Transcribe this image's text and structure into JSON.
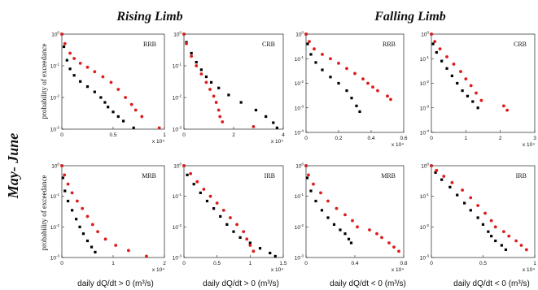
{
  "headers": {
    "rising": "Rising Limb",
    "falling": "Falling Limb"
  },
  "side_label": "May- June",
  "ylabel": "probability of exceedance",
  "xlabels": {
    "pos": "daily dQ/dt > 0 (m³/s)",
    "neg": "daily dQ/dt < 0 (m³/s)"
  },
  "colors": {
    "series_a": "#dd1c1c",
    "series_b": "#000000"
  },
  "chart_data": [
    {
      "type": "scatter",
      "id": "rising-rrb",
      "label": "RRB",
      "multiplier": "x 10⁴",
      "xlim": [
        0,
        1
      ],
      "xticks": [
        0,
        0.5,
        1
      ],
      "xtick_labels": [
        "0",
        "0.5",
        "1"
      ],
      "yscale": "log",
      "ylim": [
        0.001,
        1
      ],
      "series": [
        {
          "color": "red",
          "points": [
            [
              0,
              1
            ],
            [
              0.03,
              0.5
            ],
            [
              0.08,
              0.25
            ],
            [
              0.12,
              0.17
            ],
            [
              0.18,
              0.12
            ],
            [
              0.25,
              0.09
            ],
            [
              0.32,
              0.065
            ],
            [
              0.4,
              0.045
            ],
            [
              0.48,
              0.03
            ],
            [
              0.55,
              0.018
            ],
            [
              0.62,
              0.01
            ],
            [
              0.68,
              0.006
            ],
            [
              0.72,
              0.004
            ],
            [
              0.78,
              0.0025
            ],
            [
              0.95,
              0.0011
            ]
          ]
        },
        {
          "color": "black",
          "points": [
            [
              0,
              1
            ],
            [
              0.02,
              0.4
            ],
            [
              0.05,
              0.15
            ],
            [
              0.08,
              0.08
            ],
            [
              0.12,
              0.05
            ],
            [
              0.18,
              0.032
            ],
            [
              0.25,
              0.022
            ],
            [
              0.32,
              0.015
            ],
            [
              0.38,
              0.01
            ],
            [
              0.42,
              0.007
            ],
            [
              0.45,
              0.005
            ],
            [
              0.5,
              0.0035
            ],
            [
              0.55,
              0.0025
            ],
            [
              0.6,
              0.0018
            ],
            [
              0.7,
              0.0011
            ]
          ]
        }
      ]
    },
    {
      "type": "scatter",
      "id": "rising-crb",
      "label": "CRB",
      "multiplier": "x 10⁴",
      "xlim": [
        0,
        4
      ],
      "xticks": [
        0,
        2,
        4
      ],
      "xtick_labels": [
        "0",
        "2",
        "4"
      ],
      "yscale": "log",
      "ylim": [
        0.001,
        1
      ],
      "series": [
        {
          "color": "red",
          "points": [
            [
              0,
              1
            ],
            [
              0.1,
              0.5
            ],
            [
              0.3,
              0.2
            ],
            [
              0.5,
              0.1
            ],
            [
              0.7,
              0.055
            ],
            [
              0.9,
              0.03
            ],
            [
              1.05,
              0.018
            ],
            [
              1.2,
              0.011
            ],
            [
              1.3,
              0.007
            ],
            [
              1.4,
              0.004
            ],
            [
              1.45,
              0.0025
            ],
            [
              1.55,
              0.0017
            ],
            [
              2.8,
              0.0012
            ]
          ]
        },
        {
          "color": "black",
          "points": [
            [
              0,
              1
            ],
            [
              0.1,
              0.55
            ],
            [
              0.3,
              0.25
            ],
            [
              0.5,
              0.13
            ],
            [
              0.7,
              0.075
            ],
            [
              0.9,
              0.045
            ],
            [
              1.1,
              0.03
            ],
            [
              1.4,
              0.02
            ],
            [
              1.8,
              0.012
            ],
            [
              2.3,
              0.007
            ],
            [
              2.9,
              0.004
            ],
            [
              3.3,
              0.0025
            ],
            [
              3.6,
              0.0016
            ],
            [
              3.75,
              0.0011
            ]
          ]
        }
      ]
    },
    {
      "type": "scatter",
      "id": "falling-rrb",
      "label": "RRB",
      "multiplier": "x 10⁴",
      "xlim": [
        0,
        0.6
      ],
      "xticks": [
        0,
        0.2,
        0.4,
        0.6
      ],
      "xtick_labels": [
        "0",
        "0.2",
        "0.4",
        "0.6"
      ],
      "yscale": "log",
      "ylim": [
        0.0001,
        1
      ],
      "series": [
        {
          "color": "red",
          "points": [
            [
              0,
              1
            ],
            [
              0.02,
              0.5
            ],
            [
              0.05,
              0.25
            ],
            [
              0.1,
              0.15
            ],
            [
              0.15,
              0.1
            ],
            [
              0.2,
              0.065
            ],
            [
              0.25,
              0.04
            ],
            [
              0.3,
              0.025
            ],
            [
              0.35,
              0.015
            ],
            [
              0.38,
              0.01
            ],
            [
              0.41,
              0.007
            ],
            [
              0.44,
              0.005
            ],
            [
              0.5,
              0.003
            ],
            [
              0.52,
              0.0022
            ]
          ]
        },
        {
          "color": "black",
          "points": [
            [
              0,
              1
            ],
            [
              0.01,
              0.4
            ],
            [
              0.03,
              0.15
            ],
            [
              0.06,
              0.07
            ],
            [
              0.1,
              0.035
            ],
            [
              0.15,
              0.018
            ],
            [
              0.2,
              0.01
            ],
            [
              0.25,
              0.005
            ],
            [
              0.28,
              0.0025
            ],
            [
              0.31,
              0.0012
            ],
            [
              0.33,
              0.0007
            ]
          ]
        }
      ]
    },
    {
      "type": "scatter",
      "id": "falling-crb",
      "label": "CRB",
      "multiplier": "x 10⁴",
      "xlim": [
        0,
        3
      ],
      "xticks": [
        0,
        1,
        2,
        3
      ],
      "xtick_labels": [
        "0",
        "1",
        "2",
        "3"
      ],
      "yscale": "log",
      "ylim": [
        0.0001,
        1
      ],
      "series": [
        {
          "color": "red",
          "points": [
            [
              0,
              1
            ],
            [
              0.1,
              0.5
            ],
            [
              0.25,
              0.25
            ],
            [
              0.45,
              0.12
            ],
            [
              0.65,
              0.06
            ],
            [
              0.85,
              0.03
            ],
            [
              1.0,
              0.015
            ],
            [
              1.15,
              0.008
            ],
            [
              1.3,
              0.004
            ],
            [
              1.45,
              0.002
            ],
            [
              2.1,
              0.0012
            ],
            [
              2.2,
              0.0008
            ]
          ]
        },
        {
          "color": "black",
          "points": [
            [
              0,
              1
            ],
            [
              0.05,
              0.4
            ],
            [
              0.15,
              0.18
            ],
            [
              0.3,
              0.08
            ],
            [
              0.45,
              0.04
            ],
            [
              0.6,
              0.02
            ],
            [
              0.75,
              0.01
            ],
            [
              0.9,
              0.005
            ],
            [
              1.05,
              0.003
            ],
            [
              1.2,
              0.0018
            ],
            [
              1.35,
              0.001
            ]
          ]
        }
      ]
    },
    {
      "type": "scatter",
      "id": "rising-mrb",
      "label": "MRB",
      "multiplier": "x 10⁴",
      "xlim": [
        0,
        2
      ],
      "xticks": [
        0,
        1,
        2
      ],
      "xtick_labels": [
        "0",
        "1",
        "2"
      ],
      "yscale": "log",
      "ylim": [
        0.001,
        1
      ],
      "series": [
        {
          "color": "red",
          "points": [
            [
              0,
              1
            ],
            [
              0.05,
              0.5
            ],
            [
              0.12,
              0.25
            ],
            [
              0.2,
              0.13
            ],
            [
              0.3,
              0.07
            ],
            [
              0.4,
              0.04
            ],
            [
              0.5,
              0.022
            ],
            [
              0.6,
              0.012
            ],
            [
              0.7,
              0.007
            ],
            [
              0.85,
              0.004
            ],
            [
              1.05,
              0.0025
            ],
            [
              1.3,
              0.0017
            ],
            [
              1.65,
              0.0011
            ]
          ]
        },
        {
          "color": "black",
          "points": [
            [
              0,
              1
            ],
            [
              0.02,
              0.4
            ],
            [
              0.06,
              0.15
            ],
            [
              0.12,
              0.07
            ],
            [
              0.2,
              0.035
            ],
            [
              0.28,
              0.018
            ],
            [
              0.35,
              0.01
            ],
            [
              0.42,
              0.006
            ],
            [
              0.5,
              0.0035
            ],
            [
              0.58,
              0.0022
            ],
            [
              0.65,
              0.0015
            ]
          ]
        }
      ]
    },
    {
      "type": "scatter",
      "id": "rising-irb",
      "label": "IRB",
      "multiplier": "x 10⁴",
      "xlim": [
        0,
        1.5
      ],
      "xticks": [
        0,
        0.5,
        1,
        1.5
      ],
      "xtick_labels": [
        "0",
        "0.5",
        "1",
        "1.5"
      ],
      "yscale": "log",
      "ylim": [
        0.001,
        1
      ],
      "series": [
        {
          "color": "red",
          "points": [
            [
              0,
              1
            ],
            [
              0.1,
              0.55
            ],
            [
              0.2,
              0.3
            ],
            [
              0.3,
              0.17
            ],
            [
              0.4,
              0.1
            ],
            [
              0.5,
              0.06
            ],
            [
              0.6,
              0.035
            ],
            [
              0.7,
              0.02
            ],
            [
              0.8,
              0.012
            ],
            [
              0.9,
              0.007
            ],
            [
              0.95,
              0.004
            ],
            [
              1.0,
              0.0025
            ],
            [
              1.05,
              0.0016
            ]
          ]
        },
        {
          "color": "black",
          "points": [
            [
              0,
              1
            ],
            [
              0.05,
              0.5
            ],
            [
              0.15,
              0.25
            ],
            [
              0.25,
              0.13
            ],
            [
              0.35,
              0.07
            ],
            [
              0.45,
              0.04
            ],
            [
              0.55,
              0.022
            ],
            [
              0.65,
              0.012
            ],
            [
              0.75,
              0.007
            ],
            [
              0.85,
              0.0045
            ],
            [
              1.0,
              0.003
            ],
            [
              1.15,
              0.002
            ],
            [
              1.3,
              0.0014
            ],
            [
              1.38,
              0.0011
            ]
          ]
        }
      ]
    },
    {
      "type": "scatter",
      "id": "falling-mrb",
      "label": "MRB",
      "multiplier": "x 10⁴",
      "xlim": [
        0,
        0.8
      ],
      "xticks": [
        0,
        0.4,
        0.8
      ],
      "xtick_labels": [
        "0",
        "0.4",
        "0.8"
      ],
      "yscale": "log",
      "ylim": [
        0.001,
        1
      ],
      "series": [
        {
          "color": "red",
          "points": [
            [
              0,
              1
            ],
            [
              0.02,
              0.5
            ],
            [
              0.06,
              0.25
            ],
            [
              0.12,
              0.13
            ],
            [
              0.18,
              0.07
            ],
            [
              0.25,
              0.04
            ],
            [
              0.32,
              0.025
            ],
            [
              0.38,
              0.016
            ],
            [
              0.42,
              0.01
            ],
            [
              0.52,
              0.008
            ],
            [
              0.58,
              0.006
            ],
            [
              0.62,
              0.0045
            ],
            [
              0.68,
              0.003
            ],
            [
              0.72,
              0.0022
            ],
            [
              0.76,
              0.0016
            ]
          ]
        },
        {
          "color": "black",
          "points": [
            [
              0,
              1
            ],
            [
              0.01,
              0.4
            ],
            [
              0.04,
              0.15
            ],
            [
              0.08,
              0.07
            ],
            [
              0.13,
              0.035
            ],
            [
              0.18,
              0.02
            ],
            [
              0.23,
              0.012
            ],
            [
              0.28,
              0.008
            ],
            [
              0.32,
              0.006
            ],
            [
              0.35,
              0.004
            ],
            [
              0.37,
              0.003
            ]
          ]
        }
      ]
    },
    {
      "type": "scatter",
      "id": "falling-irb",
      "label": "IRB",
      "multiplier": "x 10⁴",
      "xlim": [
        0,
        1
      ],
      "xticks": [
        0,
        0.5,
        1
      ],
      "xtick_labels": [
        "0",
        "0.5",
        "1"
      ],
      "yscale": "log",
      "ylim": [
        0.001,
        1
      ],
      "series": [
        {
          "color": "red",
          "points": [
            [
              0,
              1
            ],
            [
              0.05,
              0.7
            ],
            [
              0.12,
              0.45
            ],
            [
              0.2,
              0.28
            ],
            [
              0.3,
              0.16
            ],
            [
              0.38,
              0.09
            ],
            [
              0.45,
              0.05
            ],
            [
              0.52,
              0.028
            ],
            [
              0.58,
              0.016
            ],
            [
              0.62,
              0.01
            ],
            [
              0.7,
              0.007
            ],
            [
              0.75,
              0.005
            ],
            [
              0.82,
              0.0035
            ],
            [
              0.87,
              0.0025
            ],
            [
              0.92,
              0.0018
            ]
          ]
        },
        {
          "color": "black",
          "points": [
            [
              0,
              1
            ],
            [
              0.04,
              0.6
            ],
            [
              0.1,
              0.35
            ],
            [
              0.18,
              0.2
            ],
            [
              0.25,
              0.11
            ],
            [
              0.32,
              0.06
            ],
            [
              0.38,
              0.035
            ],
            [
              0.45,
              0.02
            ],
            [
              0.5,
              0.012
            ],
            [
              0.55,
              0.007
            ],
            [
              0.58,
              0.005
            ],
            [
              0.62,
              0.0035
            ],
            [
              0.68,
              0.0025
            ],
            [
              0.72,
              0.0018
            ]
          ]
        }
      ]
    }
  ]
}
